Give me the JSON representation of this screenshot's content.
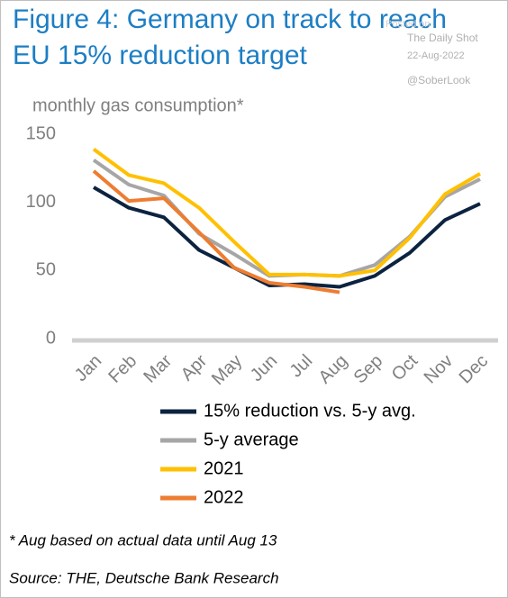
{
  "chart_data": {
    "type": "line",
    "title": "Figure 4: Germany on track to reach EU 15% reduction target",
    "title_lines": [
      "Figure 4: Germany on track to reach",
      "EU 15% reduction target"
    ],
    "watermark": [
      "Posted on",
      "The Daily Shot",
      "22-Aug-2022",
      "@SoberLook"
    ],
    "y_label": "monthly gas consumption*",
    "categories": [
      "Jan",
      "Feb",
      "Mar",
      "Apr",
      "May",
      "Jun",
      "Jul",
      "Aug",
      "Sep",
      "Oct",
      "Nov",
      "Dec"
    ],
    "series": [
      {
        "name": "15% reduction vs. 5-y avg.",
        "color": "#0c2340",
        "values": [
          111,
          96,
          89,
          65,
          52,
          39,
          40,
          38,
          46,
          63,
          87,
          99
        ]
      },
      {
        "name": "5-y average",
        "color": "#a6a6a6",
        "values": [
          131,
          113,
          105,
          77,
          62,
          46,
          47,
          46,
          54,
          75,
          104,
          117
        ]
      },
      {
        "name": "2021",
        "color": "#ffc000",
        "values": [
          139,
          120,
          114,
          96,
          71,
          47,
          47,
          46,
          50,
          74,
          106,
          121
        ]
      },
      {
        "name": "2022",
        "color": "#ed7d31",
        "values": [
          123,
          101,
          103,
          78,
          52,
          41,
          38,
          34,
          null,
          null,
          null,
          null
        ]
      }
    ],
    "ylim": [
      0,
      150
    ],
    "yticks": [
      0,
      50,
      100,
      150
    ],
    "grid": false,
    "notes": [
      "* Aug based on actual data until Aug 13",
      "Source: THE, Deutsche Bank Research"
    ]
  }
}
